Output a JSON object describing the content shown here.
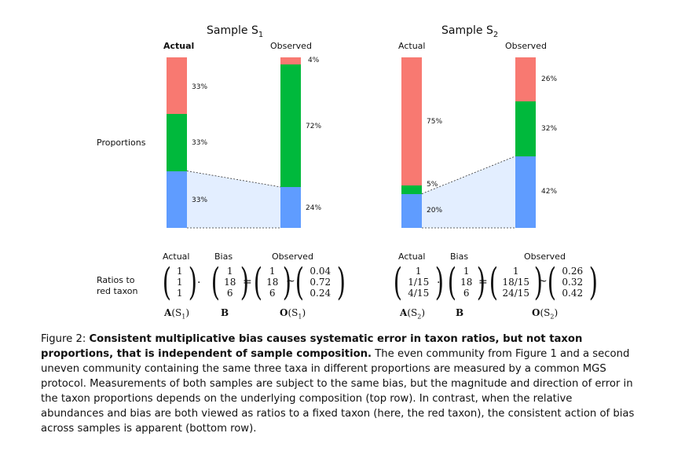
{
  "figure": {
    "samples": [
      {
        "title_main": "Sample S",
        "title_sub": "1",
        "actual_label": "Actual",
        "observed_label": "Observed",
        "actual_pcts": {
          "red": "33%",
          "green": "33%",
          "blue": "33%"
        },
        "observed_pcts": {
          "red": "4%",
          "green": "72%",
          "blue": "24%"
        },
        "actual_props": {
          "red": 0.333,
          "green": 0.333,
          "blue": 0.333
        },
        "observed_props": {
          "red": 0.04,
          "green": 0.72,
          "blue": 0.24
        }
      },
      {
        "title_main": "Sample S",
        "title_sub": "2",
        "actual_label": "Actual",
        "observed_label": "Observed",
        "actual_pcts": {
          "red": "75%",
          "green": "5%",
          "blue": "20%"
        },
        "observed_pcts": {
          "red": "26%",
          "green": "32%",
          "blue": "42%"
        },
        "actual_props": {
          "red": 0.75,
          "green": 0.05,
          "blue": 0.2
        },
        "observed_props": {
          "red": 0.26,
          "green": 0.32,
          "blue": 0.42
        }
      }
    ],
    "row_label_proportions": "Proportions",
    "row_label_ratios_line1": "Ratios to",
    "row_label_ratios_line2": "red taxon",
    "ratios": [
      {
        "actual_header": "Actual",
        "bias_header": "Bias",
        "observed_header": "Observed",
        "actual": [
          "1",
          "1",
          "1"
        ],
        "bias": [
          "1",
          "18",
          "6"
        ],
        "product": [
          "1",
          "18",
          "6"
        ],
        "observed": [
          "0.04",
          "0.72",
          "0.24"
        ],
        "dot": "·",
        "eq": "=",
        "sim": "~",
        "a_label": "A",
        "a_paren": "(S",
        "a_sub": "1",
        "a_close": ")",
        "b_label": "B",
        "o_label": "O",
        "o_paren": "(S",
        "o_sub": "1",
        "o_close": ")"
      },
      {
        "actual_header": "Actual",
        "bias_header": "Bias",
        "observed_header": "Observed",
        "actual": [
          "1",
          "1/15",
          "4/15"
        ],
        "bias": [
          "1",
          "18",
          "6"
        ],
        "product": [
          "1",
          "18/15",
          "24/15"
        ],
        "observed": [
          "0.26",
          "0.32",
          "0.42"
        ],
        "dot": "·",
        "eq": "=",
        "sim": "~",
        "a_label": "A",
        "a_paren": "(S",
        "a_sub": "2",
        "a_close": ")",
        "b_label": "B",
        "o_label": "O",
        "o_paren": "(S",
        "o_sub": "2",
        "o_close": ")"
      }
    ],
    "colors": {
      "red": "#f87971",
      "green": "#00b93c",
      "blue": "#5f9cff",
      "band": "#e3eeff"
    }
  },
  "caption": {
    "prefix": "Figure 2: ",
    "bold": "Consistent multiplicative bias causes systematic error in taxon ratios, but not taxon proportions, that is independent of sample composition.",
    "text": " The even community from Figure 1 and a second uneven community containing the same three taxa in different proportions are measured by a common MGS protocol. Measurements of both samples are subject to the same bias, but the magnitude and direction of error in the taxon proportions depends on the underlying composition (top row). In contrast, when the relative abundances and bias are both viewed as ratios to a fixed taxon (here, the red taxon), the consistent action of bias across samples is apparent (bottom row)."
  }
}
